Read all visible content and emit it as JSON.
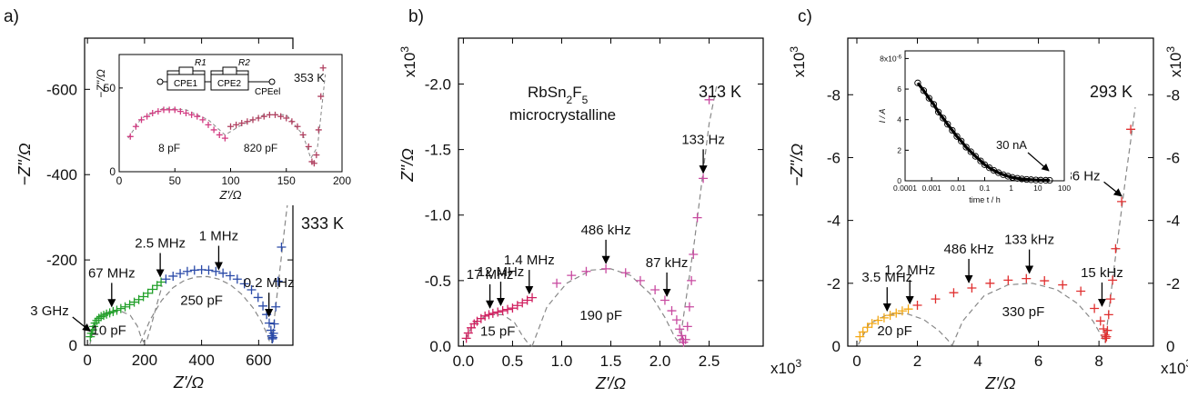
{
  "chart_data": [
    {
      "panel_label": "a)",
      "type": "scatter",
      "xlabel": "Z'/Ω",
      "ylabel": "−Z''/Ω",
      "xlim": [
        -10,
        720
      ],
      "ylim": [
        0,
        -720
      ],
      "x_ticks": [
        "0",
        "200",
        "400",
        "600"
      ],
      "y_ticks": [
        "0",
        "-200",
        "-400",
        "-600"
      ],
      "temperature": "333 K",
      "series": [
        {
          "color": "#22a02a",
          "x": [
            10,
            14,
            18,
            22,
            27,
            33,
            40,
            48,
            57,
            67,
            78,
            90,
            103,
            117,
            132,
            148,
            164,
            180,
            196,
            212,
            228,
            244,
            258
          ],
          "y": [
            -20,
            -28,
            -36,
            -44,
            -52,
            -58,
            -63,
            -67,
            -70,
            -73,
            -76,
            -79,
            -82,
            -86,
            -90,
            -95,
            -101,
            -107,
            -114,
            -122,
            -131,
            -140,
            -148
          ]
        },
        {
          "color": "#2a4aa8",
          "x": [
            275,
            300,
            325,
            350,
            375,
            400,
            425,
            450,
            475,
            500,
            525,
            550,
            575,
            598,
            615,
            628,
            637,
            643,
            646,
            648,
            650,
            652,
            655,
            660,
            668,
            680,
            695
          ],
          "y": [
            -155,
            -162,
            -168,
            -173,
            -176,
            -177,
            -176,
            -173,
            -169,
            -163,
            -155,
            -144,
            -130,
            -112,
            -92,
            -72,
            -52,
            -35,
            -22,
            -15,
            -18,
            -28,
            -50,
            -90,
            -150,
            -230,
            -340
          ]
        }
      ],
      "dashed_fits": [
        {
          "x": [
            8,
            30,
            60,
            90,
            120,
            150,
            175,
            190,
            200,
            210,
            225,
            245,
            262
          ],
          "y": [
            0,
            -60,
            -75,
            -80,
            -79,
            -70,
            -45,
            -15,
            -5,
            -15,
            -50,
            -100,
            -140
          ]
        },
        {
          "x": [
            185,
            220,
            260,
            300,
            340,
            380,
            420,
            460,
            500,
            540,
            580,
            610,
            630,
            640
          ],
          "y": [
            -5,
            -60,
            -105,
            -135,
            -152,
            -160,
            -161,
            -155,
            -142,
            -120,
            -88,
            -55,
            -25,
            -5
          ]
        },
        {
          "x": [
            645,
            670,
            695,
            710
          ],
          "y": [
            -5,
            -150,
            -300,
            -380
          ]
        }
      ],
      "annotations": [
        {
          "text": "3 GHz",
          "x": 10,
          "y": -20,
          "dir": "left"
        },
        {
          "text": "67 MHz",
          "x": 85,
          "y": -78,
          "dir": "down"
        },
        {
          "text": "2.5 MHz",
          "x": 255,
          "y": -148,
          "dir": "down"
        },
        {
          "text": "1 MHz",
          "x": 460,
          "y": -165,
          "dir": "down"
        },
        {
          "text": "0.2 MHz",
          "x": 636,
          "y": -55,
          "dir": "down"
        }
      ],
      "region_labels": [
        {
          "text": "10 pF",
          "x": 75,
          "y": -25
        },
        {
          "text": "250 pF",
          "x": 400,
          "y": -95
        }
      ],
      "inset": {
        "xlabel": "Z'/Ω",
        "ylabel": "−Z''/Ω",
        "xlim": [
          0,
          200
        ],
        "ylim": [
          0,
          70
        ],
        "x_ticks": [
          "0",
          "50",
          "100",
          "150",
          "200"
        ],
        "y_ticks": [
          "0",
          "50"
        ],
        "temperature": "353 K",
        "circuit": [
          "R1",
          "R2",
          "CPE1",
          "CPE2",
          "CPEel"
        ],
        "region_labels": [
          {
            "text": "8 pF",
            "x": 45,
            "y": 12
          },
          {
            "text": "820 pF",
            "x": 127,
            "y": 12
          }
        ],
        "series": [
          {
            "color": "#d23c82",
            "x": [
              10,
              15,
              20,
              25,
              30,
              35,
              40,
              45,
              50,
              55,
              60,
              65,
              70,
              75,
              80,
              85,
              90,
              95
            ],
            "y": [
              21,
              27,
              31,
              33,
              35,
              36,
              37,
              37,
              37,
              36,
              35,
              34,
              33,
              31,
              28,
              25,
              22,
              20
            ]
          },
          {
            "color": "#b04060",
            "x": [
              100,
              105,
              110,
              115,
              120,
              125,
              130,
              135,
              140,
              145,
              150,
              155,
              160,
              165,
              170,
              173,
              175,
              177,
              179,
              181,
              183
            ],
            "y": [
              27,
              28,
              29,
              30,
              31,
              32,
              33,
              34,
              34,
              33,
              32,
              30,
              27,
              22,
              15,
              6,
              5,
              10,
              25,
              45,
              62
            ]
          }
        ],
        "dashed_fit": {
          "x": [
            8,
            20,
            40,
            60,
            80,
            95,
            110,
            130,
            150,
            165,
            172,
            178,
            185
          ],
          "y": [
            20,
            32,
            38,
            37,
            31,
            22,
            28,
            34,
            34,
            22,
            8,
            15,
            58
          ]
        }
      }
    },
    {
      "panel_label": "b)",
      "type": "scatter",
      "xlabel": "Z'/Ω",
      "ylabel": "Z''/Ω",
      "x_multiplier": "x10^3",
      "y_multiplier": "x10^3",
      "xlim": [
        -0.05,
        3.05
      ],
      "ylim": [
        0,
        -2.35
      ],
      "x_ticks": [
        "0.0",
        "0.5",
        "1.0",
        "1.5",
        "2.0",
        "2.5"
      ],
      "y_ticks": [
        "0.0",
        "-0.5",
        "-1.0",
        "-1.5",
        "-2.0"
      ],
      "title_lines": [
        "RbSn2F5",
        "microcrystalline"
      ],
      "temperature": "313 K",
      "series": [
        {
          "color": "#d02060",
          "x": [
            0.03,
            0.05,
            0.08,
            0.11,
            0.14,
            0.18,
            0.22,
            0.26,
            0.3,
            0.35,
            0.4,
            0.45,
            0.5,
            0.55,
            0.6,
            0.65,
            0.7
          ],
          "y": [
            -0.06,
            -0.1,
            -0.14,
            -0.17,
            -0.19,
            -0.21,
            -0.23,
            -0.24,
            -0.25,
            -0.26,
            -0.27,
            -0.28,
            -0.29,
            -0.31,
            -0.33,
            -0.35,
            -0.37
          ]
        },
        {
          "color": "#c84aa0",
          "x": [
            0.95,
            1.1,
            1.25,
            1.45,
            1.65,
            1.8,
            1.95,
            2.05,
            2.12,
            2.17,
            2.2,
            2.22,
            2.23,
            2.24,
            2.26,
            2.28,
            2.3,
            2.32,
            2.34,
            2.38,
            2.44,
            2.5
          ],
          "y": [
            -0.48,
            -0.54,
            -0.57,
            -0.59,
            -0.56,
            -0.5,
            -0.43,
            -0.35,
            -0.27,
            -0.2,
            -0.13,
            -0.08,
            -0.05,
            -0.03,
            -0.05,
            -0.15,
            -0.3,
            -0.5,
            -0.7,
            -0.98,
            -1.28,
            -1.88
          ]
        }
      ],
      "dashed_fits": [
        {
          "x": [
            0.02,
            0.1,
            0.25,
            0.4,
            0.52,
            0.6,
            0.66,
            0.7
          ],
          "y": [
            -0.05,
            -0.17,
            -0.24,
            -0.24,
            -0.18,
            -0.08,
            -0.02,
            0.0
          ]
        },
        {
          "x": [
            0.7,
            0.85,
            1.05,
            1.3,
            1.5,
            1.7,
            1.9,
            2.05,
            2.15,
            2.2
          ],
          "y": [
            0.0,
            -0.3,
            -0.48,
            -0.58,
            -0.59,
            -0.54,
            -0.4,
            -0.22,
            -0.07,
            -0.02
          ]
        },
        {
          "x": [
            2.2,
            2.35,
            2.5,
            2.58
          ],
          "y": [
            -0.02,
            -0.8,
            -1.7,
            -2.0
          ]
        }
      ],
      "annotations": [
        {
          "text": "17 MHz",
          "x": 0.27,
          "y": -0.25,
          "dir": "down"
        },
        {
          "text": "12 MHz",
          "x": 0.38,
          "y": -0.27,
          "dir": "down"
        },
        {
          "text": "1.4 MHz",
          "x": 0.67,
          "y": -0.36,
          "dir": "down"
        },
        {
          "text": "486 kHz",
          "x": 1.45,
          "y": -0.59,
          "dir": "down"
        },
        {
          "text": "87 kHz",
          "x": 2.07,
          "y": -0.34,
          "dir": "down"
        },
        {
          "text": "133 Hz",
          "x": 2.44,
          "y": -1.28,
          "dir": "down"
        }
      ],
      "region_labels": [
        {
          "text": "15 pF",
          "x": 0.35,
          "y": -0.08
        },
        {
          "text": "190 pF",
          "x": 1.4,
          "y": -0.2
        }
      ]
    },
    {
      "panel_label": "c)",
      "type": "scatter",
      "xlabel": "Z'/Ω",
      "ylabel": "−Z''/Ω",
      "x_multiplier": "x10^3",
      "y_multiplier": "x10^3",
      "xlim": [
        -0.3,
        9.8
      ],
      "ylim": [
        0,
        -9.8
      ],
      "x_ticks": [
        "0",
        "2",
        "4",
        "6",
        "8"
      ],
      "y_ticks": [
        "0",
        "-2",
        "-4",
        "-6",
        "-8"
      ],
      "y_ticks_right": [
        "0",
        "-2",
        "-4",
        "-6",
        "-8"
      ],
      "temperature": "293 K",
      "series": [
        {
          "color": "#f4a814",
          "x": [
            0.1,
            0.2,
            0.35,
            0.5,
            0.7,
            0.9,
            1.1,
            1.3,
            1.5,
            1.7
          ],
          "y": [
            -0.3,
            -0.45,
            -0.6,
            -0.72,
            -0.82,
            -0.9,
            -0.98,
            -1.05,
            -1.12,
            -1.18
          ]
        },
        {
          "color": "#e03030",
          "x": [
            2.0,
            2.6,
            3.2,
            3.8,
            4.4,
            5.0,
            5.6,
            6.2,
            6.8,
            7.4,
            7.85,
            8.05,
            8.15,
            8.2,
            8.22,
            8.25,
            8.28,
            8.32,
            8.38,
            8.45,
            8.55,
            8.75,
            9.05
          ],
          "y": [
            -1.3,
            -1.5,
            -1.7,
            -1.85,
            -2.0,
            -2.1,
            -2.15,
            -2.08,
            -1.95,
            -1.75,
            -1.2,
            -0.8,
            -0.55,
            -0.35,
            -0.25,
            -0.3,
            -0.5,
            -1.0,
            -1.5,
            -2.1,
            -3.1,
            -4.6,
            -6.9
          ]
        }
      ],
      "dashed_fits": [
        {
          "x": [
            0.05,
            0.4,
            1.0,
            1.6,
            2.2,
            2.7,
            3.0,
            3.15
          ],
          "y": [
            -0.05,
            -0.7,
            -1.0,
            -1.05,
            -0.85,
            -0.5,
            -0.2,
            -0.02
          ]
        },
        {
          "x": [
            3.15,
            3.5,
            4.2,
            5.0,
            5.8,
            6.6,
            7.3,
            7.8,
            8.1,
            8.2
          ],
          "y": [
            -0.02,
            -0.8,
            -1.6,
            -1.95,
            -2.0,
            -1.8,
            -1.35,
            -0.8,
            -0.3,
            -0.1
          ]
        },
        {
          "x": [
            8.2,
            8.5,
            8.9,
            9.2
          ],
          "y": [
            -0.1,
            -2.5,
            -5.5,
            -7.6
          ]
        }
      ],
      "annotations": [
        {
          "text": "3.5 MHz",
          "x": 1.0,
          "y": -0.95,
          "dir": "down"
        },
        {
          "text": "1.2 MHz",
          "x": 1.75,
          "y": -1.18,
          "dir": "down"
        },
        {
          "text": "486 kHz",
          "x": 3.7,
          "y": -1.85,
          "dir": "down"
        },
        {
          "text": "133 kHz",
          "x": 5.7,
          "y": -2.15,
          "dir": "down"
        },
        {
          "text": "15 kHz",
          "x": 8.1,
          "y": -1.1,
          "dir": "down"
        },
        {
          "text": "36 Hz",
          "x": 8.75,
          "y": -4.6,
          "dir": "left"
        }
      ],
      "region_labels": [
        {
          "text": "20 pF",
          "x": 1.25,
          "y": -0.35
        },
        {
          "text": "330 pF",
          "x": 5.5,
          "y": -0.95
        }
      ],
      "inset": {
        "xlabel": "time t / h",
        "ylabel": "I / A",
        "x_scale": "log",
        "xlim": [
          0.0001,
          100
        ],
        "ylim": [
          0,
          8.5e-06
        ],
        "x_ticks": [
          "0.0001",
          "0.001",
          "0.01",
          "0.1",
          "1",
          "10",
          "100"
        ],
        "y_ticks": [
          "0",
          "2",
          "4",
          "6",
          "8x10^-6"
        ],
        "annotation": "30 nA",
        "series": [
          {
            "color": "#000000",
            "x": [
              0.0003,
              0.0005,
              0.0008,
              0.0012,
              0.0018,
              0.0027,
              0.004,
              0.006,
              0.009,
              0.013,
              0.02,
              0.03,
              0.045,
              0.07,
              0.1,
              0.15,
              0.22,
              0.33,
              0.5,
              0.75,
              1.1,
              1.7,
              2.5,
              3.8,
              5.6,
              8.5,
              13,
              20,
              28
            ],
            "y": [
              6.4e-06,
              5.9e-06,
              5.4e-06,
              5e-06,
              4.5e-06,
              4.1e-06,
              3.7e-06,
              3.3e-06,
              2.9e-06,
              2.6e-06,
              2.2e-06,
              1.9e-06,
              1.6e-06,
              1.3e-06,
              1.05e-06,
              8.5e-07,
              6.8e-07,
              5.3e-07,
              4e-07,
              3e-07,
              2.2e-07,
              1.6e-07,
              1.2e-07,
              9e-08,
              7e-08,
              5e-08,
              4e-08,
              3.3e-08,
              3e-08
            ]
          }
        ]
      }
    }
  ]
}
